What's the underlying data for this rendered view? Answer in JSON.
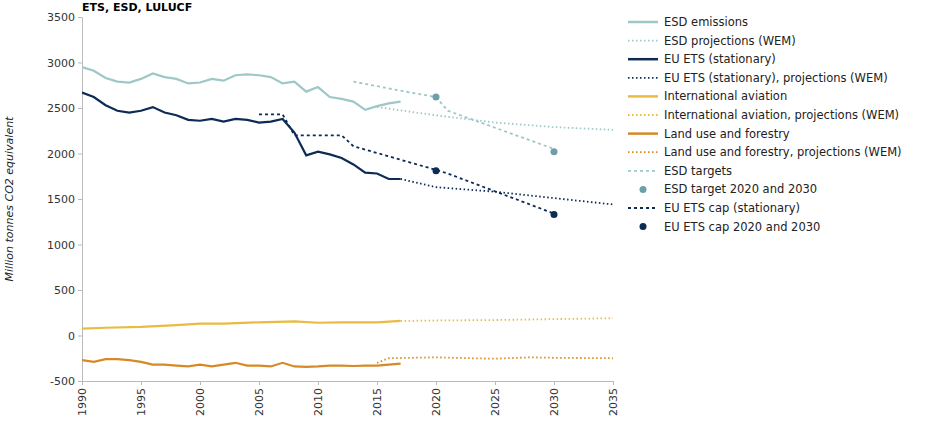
{
  "chart_data": {
    "type": "line",
    "title": "ETS, ESD, LULUCF",
    "y_label": "Million tonnes CO2 equivalent",
    "xlim": [
      1990,
      2035
    ],
    "xticks": [
      1990,
      1995,
      2000,
      2005,
      2010,
      2015,
      2020,
      2025,
      2030,
      2035
    ],
    "ylim": [
      -500,
      3500
    ],
    "yticks": [
      -500,
      0,
      500,
      1000,
      1500,
      2000,
      2500,
      3000,
      3500
    ],
    "grid": false,
    "legend": "right",
    "series": [
      {
        "name": "ESD emissions",
        "color": "#9ec8c8",
        "type": "line",
        "line_style": "solid",
        "x": [
          1990,
          1991,
          1992,
          1993,
          1994,
          1995,
          1996,
          1997,
          1998,
          1999,
          2000,
          2001,
          2002,
          2003,
          2004,
          2005,
          2006,
          2007,
          2008,
          2009,
          2010,
          2011,
          2012,
          2013,
          2014,
          2015,
          2016,
          2017
        ],
        "values": [
          2950,
          2910,
          2830,
          2790,
          2780,
          2820,
          2880,
          2840,
          2820,
          2770,
          2780,
          2820,
          2800,
          2860,
          2870,
          2860,
          2840,
          2770,
          2790,
          2680,
          2730,
          2620,
          2600,
          2570,
          2480,
          2520,
          2550,
          2570
        ]
      },
      {
        "name": "ESD projections (WEM)",
        "color": "#9ec8c8",
        "type": "line",
        "line_style": "dotted",
        "x": [
          2015,
          2020,
          2025,
          2030,
          2035
        ],
        "values": [
          2510,
          2420,
          2340,
          2290,
          2260
        ]
      },
      {
        "name": "EU ETS (stationary)",
        "color": "#0c2b55",
        "type": "line",
        "line_style": "solid",
        "x": [
          1990,
          1991,
          1992,
          1993,
          1994,
          1995,
          1996,
          1997,
          1998,
          1999,
          2000,
          2001,
          2002,
          2003,
          2004,
          2005,
          2006,
          2007,
          2008,
          2009,
          2010,
          2011,
          2012,
          2013,
          2014,
          2015,
          2016,
          2017
        ],
        "values": [
          2670,
          2620,
          2530,
          2470,
          2450,
          2470,
          2510,
          2450,
          2420,
          2370,
          2360,
          2380,
          2350,
          2380,
          2370,
          2340,
          2350,
          2380,
          2230,
          1980,
          2020,
          1990,
          1950,
          1880,
          1790,
          1780,
          1720,
          1720
        ]
      },
      {
        "name": "EU ETS (stationary), projections (WEM)",
        "color": "#0c2b55",
        "type": "line",
        "line_style": "dotted",
        "x": [
          2017,
          2020,
          2025,
          2030,
          2035
        ],
        "values": [
          1720,
          1630,
          1580,
          1510,
          1440
        ]
      },
      {
        "name": "International aviation",
        "color": "#e9bb41",
        "type": "line",
        "line_style": "solid",
        "x": [
          1990,
          1992,
          1995,
          1998,
          2000,
          2002,
          2005,
          2008,
          2010,
          2012,
          2015,
          2017
        ],
        "values": [
          75,
          85,
          95,
          115,
          130,
          130,
          145,
          155,
          140,
          145,
          145,
          160
        ]
      },
      {
        "name": "International aviation, projections (WEM)",
        "color": "#e9bb41",
        "type": "line",
        "line_style": "dotted",
        "x": [
          2017,
          2020,
          2025,
          2030,
          2035
        ],
        "values": [
          160,
          165,
          170,
          180,
          190
        ]
      },
      {
        "name": "Land use and forestry",
        "color": "#d68a27",
        "type": "line",
        "line_style": "solid",
        "x": [
          1990,
          1991,
          1992,
          1993,
          1994,
          1995,
          1996,
          1997,
          1998,
          1999,
          2000,
          2001,
          2002,
          2003,
          2004,
          2005,
          2006,
          2007,
          2008,
          2009,
          2010,
          2011,
          2012,
          2013,
          2014,
          2015,
          2016,
          2017
        ],
        "values": [
          -270,
          -290,
          -260,
          -260,
          -270,
          -290,
          -320,
          -320,
          -330,
          -340,
          -320,
          -340,
          -320,
          -300,
          -330,
          -330,
          -340,
          -300,
          -340,
          -345,
          -340,
          -330,
          -330,
          -335,
          -330,
          -330,
          -320,
          -310
        ]
      },
      {
        "name": "Land use and forestry, projections (WEM)",
        "color": "#d68a27",
        "type": "line",
        "line_style": "dotted",
        "x": [
          2015,
          2016,
          2020,
          2023,
          2025,
          2028,
          2030,
          2035
        ],
        "values": [
          -300,
          -250,
          -240,
          -250,
          -255,
          -240,
          -245,
          -250
        ]
      },
      {
        "name": "ESD targets",
        "color": "#9ec8c8",
        "type": "line",
        "line_style": "dashed",
        "x": [
          2013,
          2017,
          2020,
          2021,
          2030
        ],
        "values": [
          2790,
          2690,
          2620,
          2470,
          2050
        ]
      },
      {
        "name": "ESD target 2020 and 2030",
        "color": "#6e9fa8",
        "type": "scatter",
        "marker": "circle",
        "x": [
          2020,
          2030
        ],
        "values": [
          2620,
          2020
        ]
      },
      {
        "name": "EU ETS cap (stationary)",
        "color": "#0c2b55",
        "type": "line",
        "line_style": "dashed",
        "x": [
          2005,
          2007,
          2008,
          2012,
          2013,
          2020,
          2021,
          2030
        ],
        "values": [
          2430,
          2430,
          2200,
          2200,
          2080,
          1820,
          1780,
          1340
        ]
      },
      {
        "name": "EU ETS cap 2020 and 2030",
        "color": "#0c2b55",
        "type": "scatter",
        "marker": "circle",
        "x": [
          2020,
          2030
        ],
        "values": [
          1810,
          1330
        ]
      }
    ]
  }
}
